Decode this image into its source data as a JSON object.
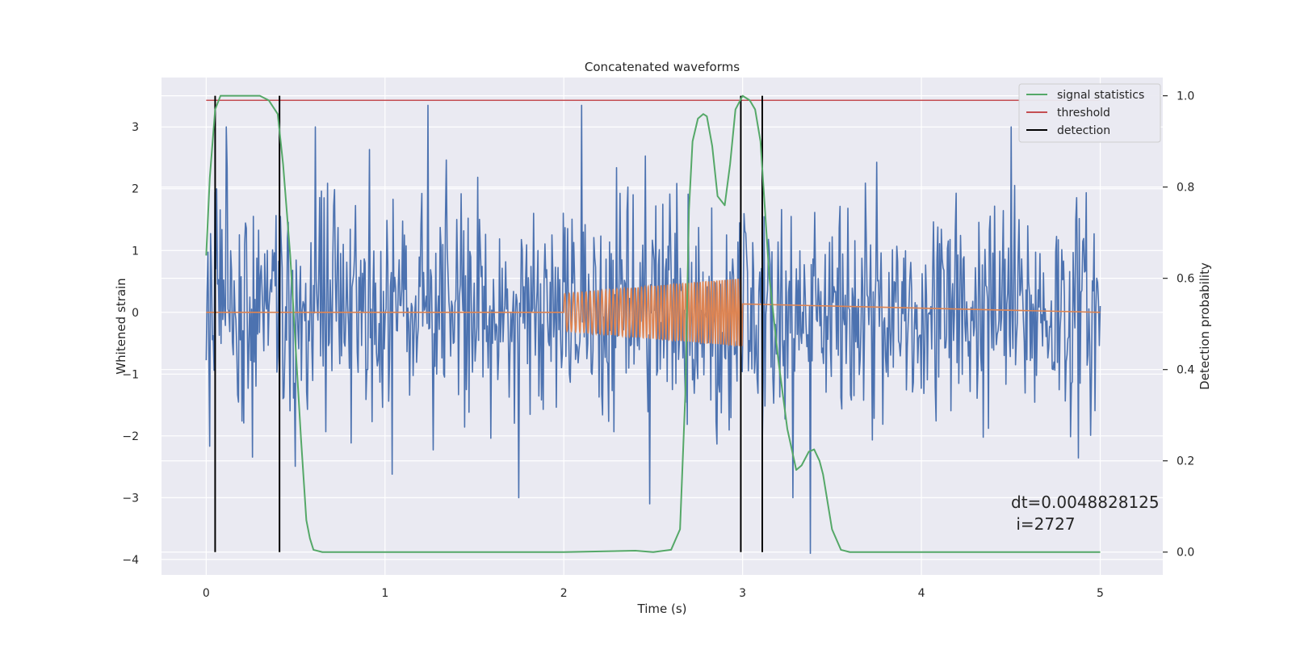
{
  "chart_data": {
    "type": "line",
    "title": "Concatenated waveforms",
    "xlabel": "Time (s)",
    "ylabel": "Whitened strain",
    "y2label": "Detection probability",
    "xlim": [
      -0.25,
      5.35
    ],
    "ylim": [
      -4.25,
      3.8
    ],
    "y2lim": [
      -0.05,
      1.04
    ],
    "xticks": [
      0,
      1,
      2,
      3,
      4,
      5
    ],
    "yticks": [
      -4,
      -3,
      -2,
      -1,
      0,
      1,
      2,
      3
    ],
    "y2ticks": [
      0.0,
      0.2,
      0.4,
      0.6,
      0.8,
      1.0
    ],
    "y2tick_labels": [
      "0.0",
      "0.2",
      "0.4",
      "0.6",
      "0.8",
      "1.0"
    ],
    "grid": true,
    "legend_position": "top-right",
    "series": [
      {
        "name": "",
        "role": "strain",
        "axis": "left",
        "color": "#4c72b0",
        "x_range": [
          0,
          5
        ],
        "amplitude_std": 0.9,
        "spikes": [
          [
            0.11,
            3.0
          ],
          [
            0.61,
            3.0
          ],
          [
            1.24,
            3.35
          ],
          [
            1.75,
            -3.0
          ],
          [
            2.1,
            3.35
          ],
          [
            2.48,
            -3.1
          ],
          [
            3.38,
            -3.9
          ],
          [
            3.28,
            -3.0
          ],
          [
            4.5,
            3.0
          ]
        ]
      },
      {
        "name": "",
        "role": "injected-chirp",
        "axis": "left",
        "color": "#dd8452",
        "x_range": [
          0,
          5
        ],
        "chirp_start": 2.0,
        "chirp_end": 3.0,
        "amplitude_start": 0.3,
        "amplitude_end": 0.55,
        "freq_start": 40,
        "freq_end": 70
      },
      {
        "name": "signal statistics",
        "axis": "right",
        "color": "#55a868",
        "x": [
          0.0,
          0.02,
          0.05,
          0.08,
          0.1,
          0.15,
          0.2,
          0.3,
          0.35,
          0.4,
          0.43,
          0.47,
          0.5,
          0.53,
          0.56,
          0.58,
          0.6,
          0.65,
          1.0,
          1.5,
          2.0,
          2.4,
          2.5,
          2.6,
          2.65,
          2.68,
          2.7,
          2.72,
          2.75,
          2.78,
          2.8,
          2.83,
          2.86,
          2.9,
          2.93,
          2.96,
          3.0,
          3.04,
          3.07,
          3.1,
          3.15,
          3.2,
          3.25,
          3.3,
          3.33,
          3.37,
          3.4,
          3.43,
          3.45,
          3.5,
          3.55,
          3.6,
          4.0,
          4.5,
          5.0
        ],
        "y": [
          0.65,
          0.82,
          0.97,
          1.0,
          1.0,
          1.0,
          1.0,
          1.0,
          0.99,
          0.96,
          0.85,
          0.65,
          0.45,
          0.25,
          0.07,
          0.03,
          0.005,
          0.0,
          0.0,
          0.0,
          0.0,
          0.003,
          0.0,
          0.005,
          0.05,
          0.35,
          0.75,
          0.9,
          0.95,
          0.96,
          0.955,
          0.89,
          0.78,
          0.76,
          0.85,
          0.97,
          1.0,
          0.99,
          0.97,
          0.9,
          0.6,
          0.42,
          0.27,
          0.18,
          0.19,
          0.22,
          0.225,
          0.2,
          0.17,
          0.05,
          0.005,
          0.0,
          0.0,
          0.0,
          0.0
        ]
      },
      {
        "name": "threshold",
        "axis": "right",
        "color": "#c44e52",
        "y": 0.99
      },
      {
        "name": "detection",
        "axis": "right",
        "color": "#000000",
        "x": [
          0.05,
          0.41,
          2.99,
          3.11
        ],
        "y_range": [
          0.0,
          1.0
        ]
      }
    ],
    "annotation": {
      "line1": "dt=0.0048828125",
      "line2": " i=2727",
      "x": 4.5,
      "y1": -3.05,
      "y2": -3.4
    }
  }
}
